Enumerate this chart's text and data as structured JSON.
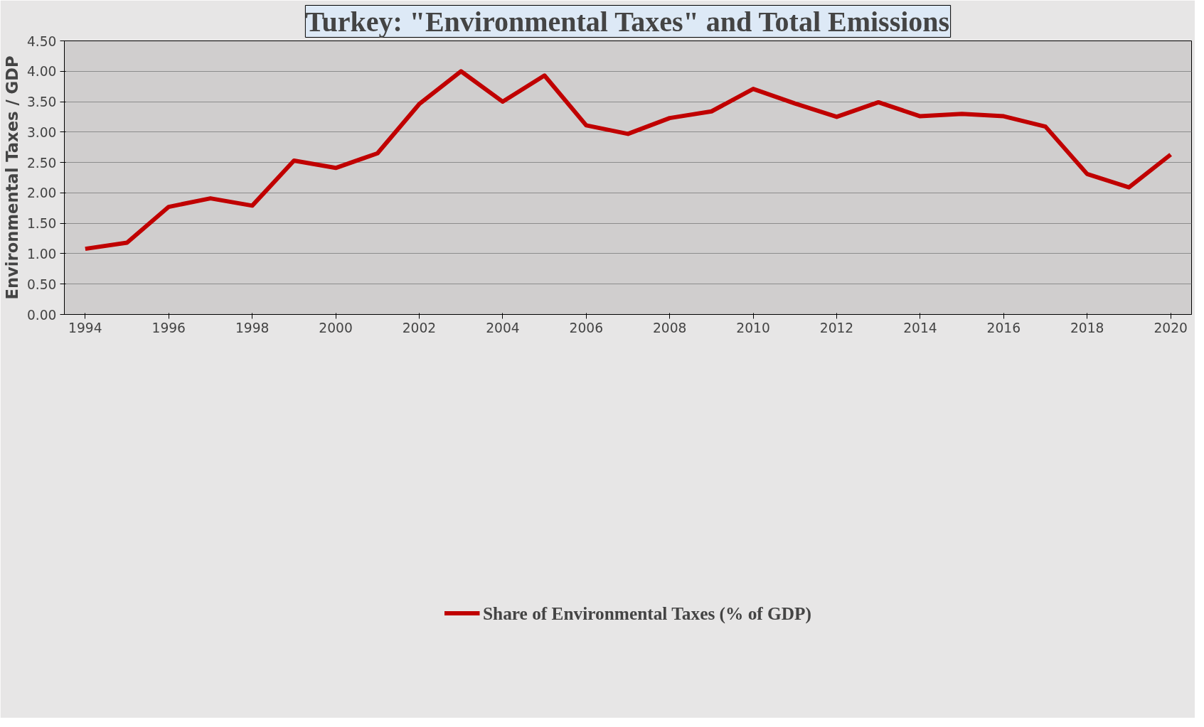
{
  "chart_data": {
    "type": "line",
    "title": "Turkey: \"Environmental Taxes\" and Total Emissions",
    "ylabel": "Environmental Taxes / GDP",
    "x": [
      1994,
      1995,
      1996,
      1997,
      1998,
      1999,
      2000,
      2001,
      2002,
      2003,
      2004,
      2005,
      2006,
      2007,
      2008,
      2009,
      2010,
      2011,
      2012,
      2013,
      2014,
      2015,
      2016,
      2017,
      2018,
      2019,
      2020
    ],
    "series": [
      {
        "name": "Share of Environmental Taxes (% of GDP)",
        "color": "#c00000",
        "values": [
          1.08,
          1.18,
          1.77,
          1.91,
          1.79,
          2.53,
          2.41,
          2.65,
          3.46,
          4.0,
          3.5,
          3.93,
          3.11,
          2.97,
          3.23,
          3.34,
          3.71,
          3.47,
          3.25,
          3.49,
          3.26,
          3.3,
          3.26,
          3.09,
          2.31,
          2.09,
          2.63
        ]
      }
    ],
    "xlim": [
      1993.5,
      2020.5
    ],
    "xticks": [
      1994,
      1996,
      1998,
      2000,
      2002,
      2004,
      2006,
      2008,
      2010,
      2012,
      2014,
      2016,
      2018,
      2020
    ],
    "ylim": [
      0,
      4.5
    ],
    "yticks": [
      {
        "value": 0,
        "label": "0.00"
      },
      {
        "value": 0.5,
        "label": "0.50"
      },
      {
        "value": 1,
        "label": "1.00"
      },
      {
        "value": 1.5,
        "label": "1.50"
      },
      {
        "value": 2,
        "label": "2.00"
      },
      {
        "value": 2.5,
        "label": "2.50"
      },
      {
        "value": 3,
        "label": "3.00"
      },
      {
        "value": 3.5,
        "label": "3.50"
      },
      {
        "value": 4,
        "label": "4.00"
      },
      {
        "value": 4.5,
        "label": "4.50"
      }
    ],
    "grid": "y",
    "legend": "bottom",
    "marker": "none",
    "line_style": "solid"
  }
}
